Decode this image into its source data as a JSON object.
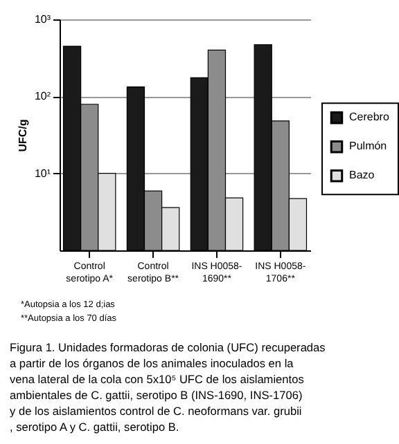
{
  "chart_data": {
    "type": "bar",
    "ylabel": "UFC/g",
    "categories": [
      "Control\nserotipo A*",
      "Control\nserotipo B**",
      "INS H0058-\n1690**",
      "INS H0058-\n1706**"
    ],
    "series": [
      {
        "name": "Cerebro",
        "color": "#1a1a1a",
        "values": [
          447,
          133,
          175,
          470
        ]
      },
      {
        "name": "Pulmón",
        "color": "#8c8c8c",
        "values": [
          79,
          5.9,
          400,
          48
        ]
      },
      {
        "name": "Bazo",
        "color": "#e0e0e0",
        "values": [
          10,
          3.6,
          4.8,
          4.7
        ]
      }
    ],
    "log": true,
    "ylim": [
      1,
      1000
    ],
    "yticks": [
      {
        "value": 10,
        "label": "10¹"
      },
      {
        "value": 100,
        "label": "10²"
      },
      {
        "value": 1000,
        "label": "10³"
      }
    ],
    "grid": "y",
    "legend": "right",
    "annotations": [
      "*Autopsia a los 12 d;ias",
      "**Autopsia a los 70 días",
      "Figura 1. Unidades formadoras de colonia (UFC) recuperadas a partir de los órganos de los animales inoculados en la vena lateral de la cola con 5x10⁵ UFC de los aislamientos ambientales de C. gattii, serotipo B (INS-1690, INS-1706) y de los aislamientos control de C. neoformans var. grubii , serotipo A y C. gattii, serotipo B."
    ]
  }
}
